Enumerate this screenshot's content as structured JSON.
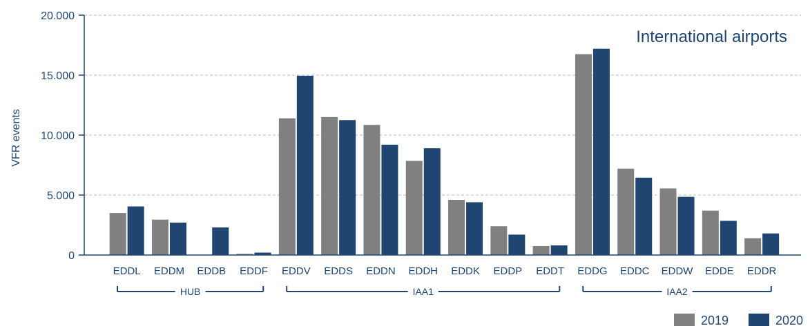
{
  "chart_data": {
    "type": "bar",
    "title": "",
    "annotation": "International airports",
    "xlabel": "",
    "ylabel": "VFR events",
    "ylim": [
      0,
      20000
    ],
    "yticks": [
      {
        "value": 0,
        "label": "0"
      },
      {
        "value": 5000,
        "label": "5.000"
      },
      {
        "value": 10000,
        "label": "10.000"
      },
      {
        "value": 15000,
        "label": "15.000"
      },
      {
        "value": 20000,
        "label": "20.000"
      }
    ],
    "grid": true,
    "legend_position": "bottom-right",
    "categories": [
      "EDDL",
      "EDDM",
      "EDDB",
      "EDDF",
      "EDDV",
      "EDDS",
      "EDDN",
      "EDDH",
      "EDDK",
      "EDDP",
      "EDDT",
      "EDDG",
      "EDDC",
      "EDDW",
      "EDDE",
      "EDDR"
    ],
    "groups": [
      {
        "label": "HUB",
        "categories": [
          "EDDL",
          "EDDM",
          "EDDB",
          "EDDF"
        ]
      },
      {
        "label": "IAA1",
        "categories": [
          "EDDV",
          "EDDS",
          "EDDN",
          "EDDH",
          "EDDK",
          "EDDP",
          "EDDT"
        ]
      },
      {
        "label": "IAA2",
        "categories": [
          "EDDG",
          "EDDC",
          "EDDW",
          "EDDE",
          "EDDR"
        ]
      }
    ],
    "series": [
      {
        "name": "2019",
        "color": "#808080",
        "values": [
          3500,
          2950,
          0,
          100,
          11400,
          11500,
          10850,
          7850,
          4600,
          2400,
          750,
          16750,
          7200,
          5550,
          3700,
          1400
        ]
      },
      {
        "name": "2020",
        "color": "#1f4570",
        "values": [
          4050,
          2700,
          2300,
          200,
          14950,
          11250,
          9200,
          8900,
          4400,
          1700,
          800,
          17200,
          6450,
          4850,
          2850,
          1800
        ]
      }
    ]
  }
}
